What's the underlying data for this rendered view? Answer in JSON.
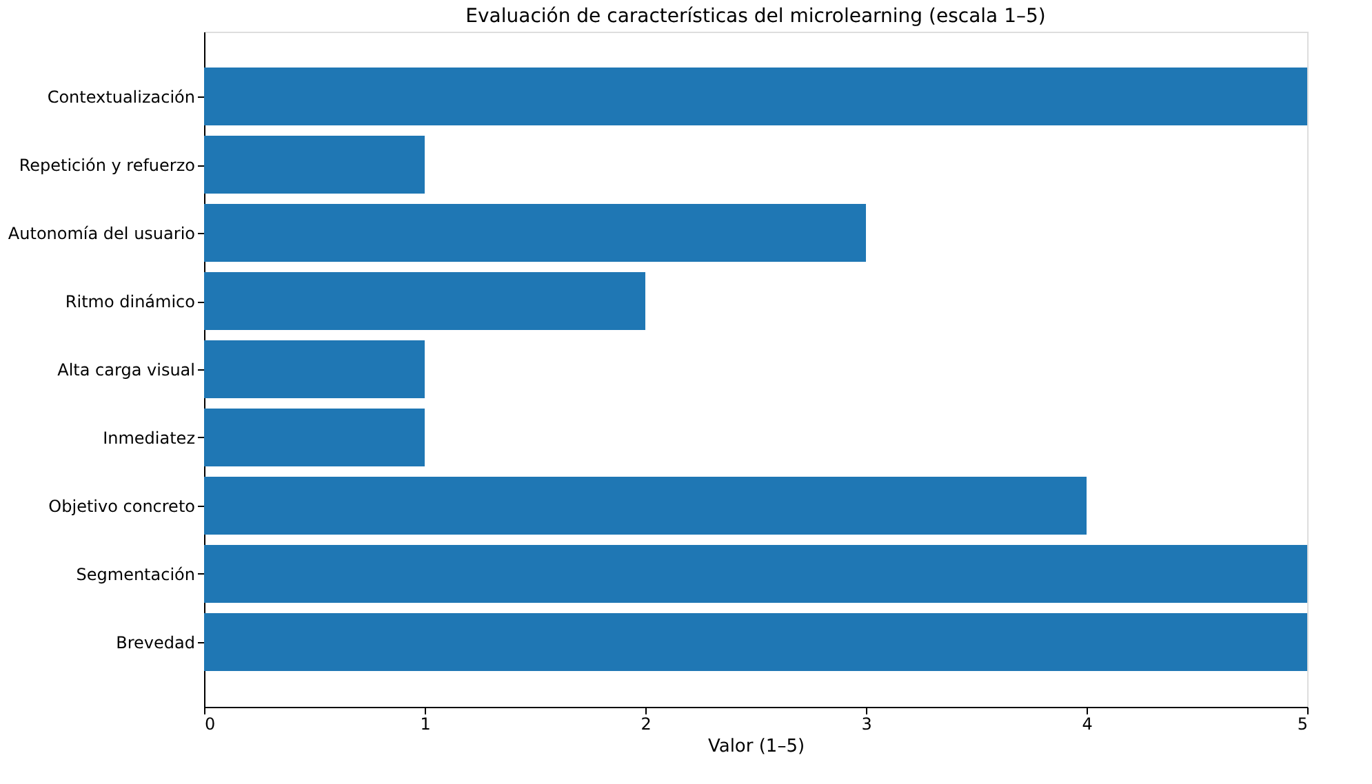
{
  "chart_data": {
    "type": "bar",
    "orientation": "horizontal",
    "title": "Evaluación de características del microlearning (escala 1–5)",
    "xlabel": "Valor (1–5)",
    "categories": [
      "Contextualización",
      "Repetición y refuerzo",
      "Autonomía del usuario",
      "Ritmo dinámico",
      "Alta carga visual",
      "Inmediatez",
      "Objetivo concreto",
      "Segmentación",
      "Brevedad"
    ],
    "values": [
      5,
      1,
      3,
      2,
      1,
      1,
      4,
      5,
      5
    ],
    "color": "#1f77b4",
    "xlim": [
      0,
      5
    ],
    "xticks": [
      0,
      1,
      2,
      3,
      4,
      5
    ],
    "grid": false
  }
}
